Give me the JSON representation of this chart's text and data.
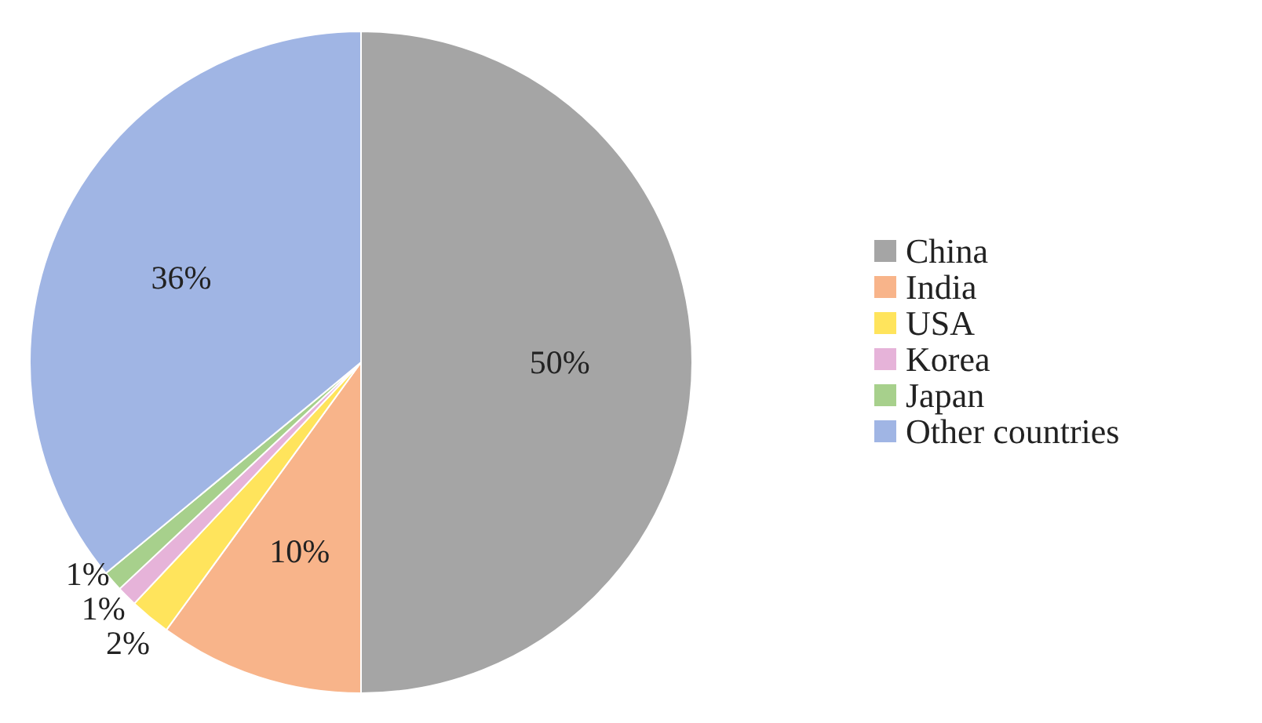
{
  "chart_data": {
    "type": "pie",
    "categories": [
      "China",
      "India",
      "USA",
      "Korea",
      "Japan",
      "Other countries"
    ],
    "values": [
      50,
      10,
      2,
      1,
      1,
      36
    ],
    "colors": [
      "#a5a5a5",
      "#f8b48a",
      "#ffe45c",
      "#e6b3d9",
      "#a7d08c",
      "#a0b5e4"
    ],
    "value_labels": [
      "50%",
      "10%",
      "2%",
      "1%",
      "1%",
      "36%"
    ],
    "legend": "right"
  }
}
